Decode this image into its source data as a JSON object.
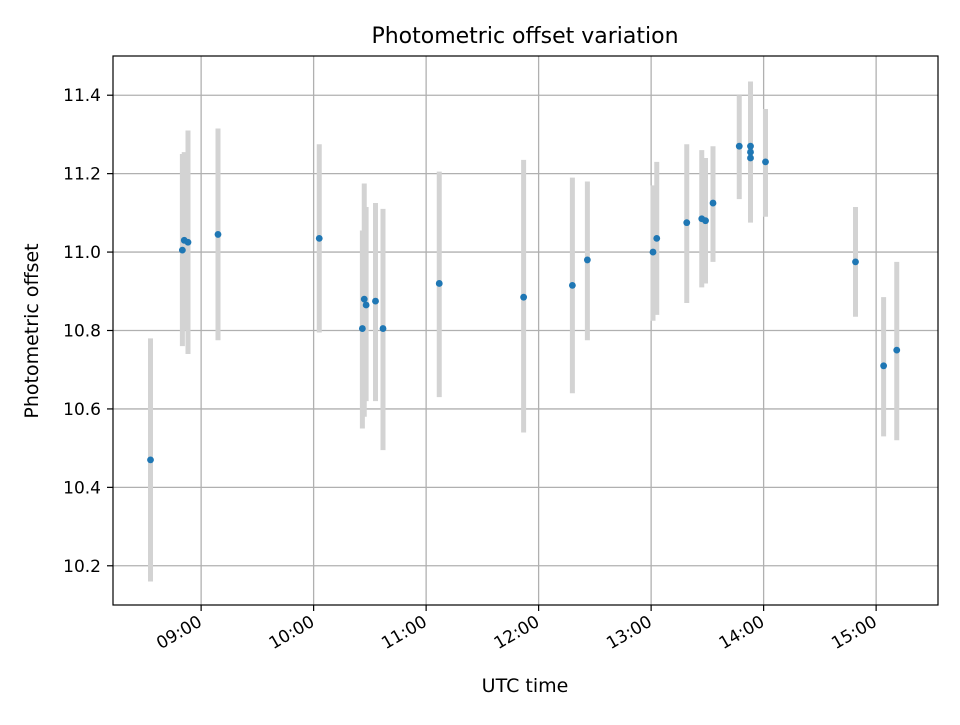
{
  "chart_data": {
    "type": "scatter",
    "title": "Photometric offset variation",
    "xlabel": "UTC time",
    "ylabel": "Photometric offset",
    "xlim": [
      "08:13",
      "15:33"
    ],
    "ylim": [
      10.1,
      11.5
    ],
    "x_tick_labels": [
      "09:00",
      "10:00",
      "11:00",
      "12:00",
      "13:00",
      "14:00",
      "15:00"
    ],
    "y_tick_values": [
      10.2,
      10.4,
      10.6,
      10.8,
      11.0,
      11.2,
      11.4
    ],
    "y_tick_labels": [
      "10.2",
      "10.4",
      "10.6",
      "10.8",
      "11.0",
      "11.2",
      "11.4"
    ],
    "grid": true,
    "legend": "none",
    "colors": {
      "points": "#1f77b4",
      "error_bars": "#d3d3d3",
      "grid": "#b0b0b0"
    },
    "points": [
      {
        "x": "08:33",
        "y": 10.47,
        "ylow": 10.16,
        "yhigh": 10.78
      },
      {
        "x": "08:50",
        "y": 11.005,
        "ylow": 10.76,
        "yhigh": 11.25
      },
      {
        "x": "08:51",
        "y": 11.03,
        "ylow": 10.8,
        "yhigh": 11.255
      },
      {
        "x": "08:53",
        "y": 11.025,
        "ylow": 10.74,
        "yhigh": 11.31
      },
      {
        "x": "09:09",
        "y": 11.045,
        "ylow": 10.775,
        "yhigh": 11.315
      },
      {
        "x": "10:03",
        "y": 11.035,
        "ylow": 10.795,
        "yhigh": 11.275
      },
      {
        "x": "10:26",
        "y": 10.805,
        "ylow": 10.55,
        "yhigh": 11.055
      },
      {
        "x": "10:27",
        "y": 10.88,
        "ylow": 10.58,
        "yhigh": 11.175
      },
      {
        "x": "10:28",
        "y": 10.865,
        "ylow": 10.62,
        "yhigh": 11.115
      },
      {
        "x": "10:33",
        "y": 10.875,
        "ylow": 10.62,
        "yhigh": 11.125
      },
      {
        "x": "10:37",
        "y": 10.805,
        "ylow": 10.495,
        "yhigh": 11.11
      },
      {
        "x": "11:07",
        "y": 10.92,
        "ylow": 10.63,
        "yhigh": 11.205
      },
      {
        "x": "11:52",
        "y": 10.885,
        "ylow": 10.54,
        "yhigh": 11.235
      },
      {
        "x": "12:18",
        "y": 10.915,
        "ylow": 10.64,
        "yhigh": 11.19
      },
      {
        "x": "12:26",
        "y": 10.98,
        "ylow": 10.775,
        "yhigh": 11.18
      },
      {
        "x": "13:01",
        "y": 11.0,
        "ylow": 10.825,
        "yhigh": 11.17
      },
      {
        "x": "13:03",
        "y": 11.035,
        "ylow": 10.84,
        "yhigh": 11.23
      },
      {
        "x": "13:19",
        "y": 11.075,
        "ylow": 10.87,
        "yhigh": 11.275
      },
      {
        "x": "13:27",
        "y": 11.085,
        "ylow": 10.91,
        "yhigh": 11.26
      },
      {
        "x": "13:29",
        "y": 11.08,
        "ylow": 10.92,
        "yhigh": 11.24
      },
      {
        "x": "13:33",
        "y": 11.125,
        "ylow": 10.975,
        "yhigh": 11.27
      },
      {
        "x": "13:47",
        "y": 11.27,
        "ylow": 11.135,
        "yhigh": 11.4
      },
      {
        "x": "13:53",
        "y": 11.255,
        "ylow": 11.12,
        "yhigh": 11.385
      },
      {
        "x": "13:53",
        "y": 11.27,
        "ylow": 11.11,
        "yhigh": 11.435
      },
      {
        "x": "13:53",
        "y": 11.24,
        "ylow": 11.075,
        "yhigh": 11.405
      },
      {
        "x": "14:01",
        "y": 11.23,
        "ylow": 11.09,
        "yhigh": 11.365
      },
      {
        "x": "14:49",
        "y": 10.975,
        "ylow": 10.835,
        "yhigh": 11.115
      },
      {
        "x": "15:04",
        "y": 10.71,
        "ylow": 10.53,
        "yhigh": 10.885
      },
      {
        "x": "15:11",
        "y": 10.75,
        "ylow": 10.52,
        "yhigh": 10.975
      }
    ]
  }
}
